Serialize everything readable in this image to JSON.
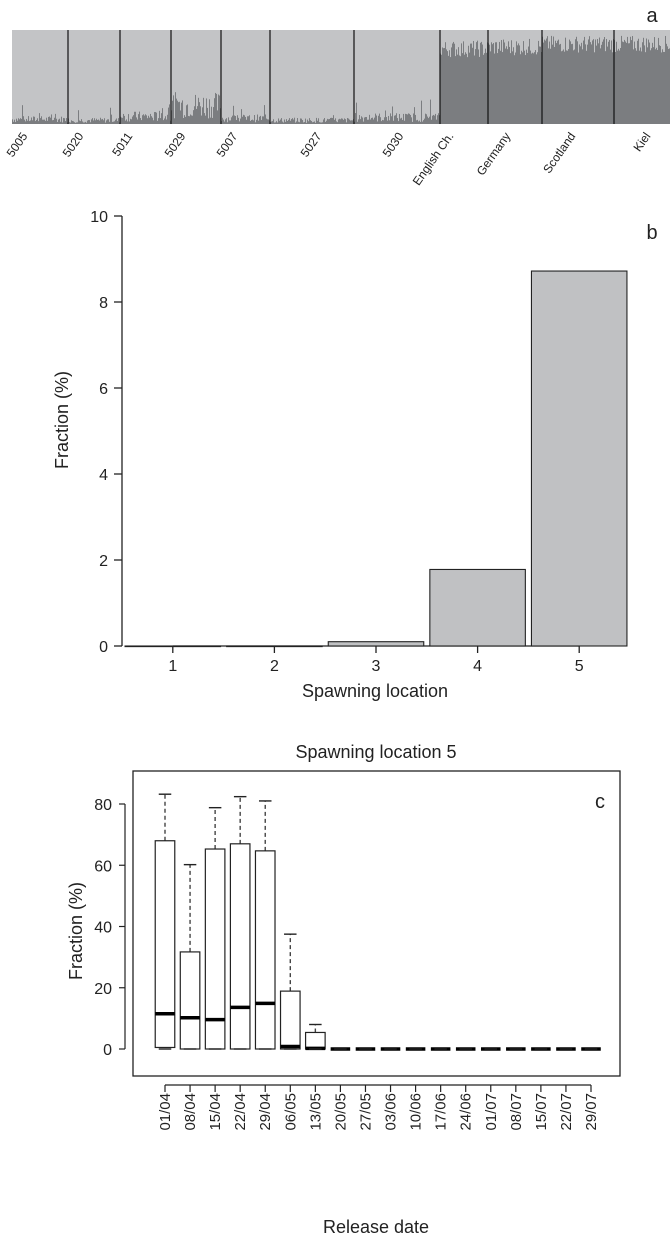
{
  "colors": {
    "bar_fill": "#c0c1c3",
    "structure_light": "#c3c4c6",
    "structure_dark": "#7b7d80",
    "axis": "#222222"
  },
  "chart_data": [
    {
      "type": "bar",
      "panel_label": "a",
      "description_note": "STRUCTURE-style admixture plot; light grey cluster proportion per individual",
      "groups": [
        "5005",
        "5020",
        "5011",
        "5029",
        "5007",
        "5027",
        "5030",
        "English Ch.",
        "Germany",
        "Scotland",
        "Kiel"
      ],
      "group_dark_cluster_approx": [
        0.05,
        0.04,
        0.08,
        0.2,
        0.06,
        0.04,
        0.07,
        0.8,
        0.82,
        0.85,
        0.85
      ],
      "ylim": [
        0,
        1
      ]
    },
    {
      "type": "bar",
      "panel_label": "b",
      "categories": [
        "1",
        "2",
        "3",
        "4",
        "5"
      ],
      "values": [
        0.0,
        0.0,
        0.1,
        1.78,
        8.72
      ],
      "xlabel": "Spawning location",
      "ylabel": "Fraction (%)",
      "ylim": [
        0,
        10
      ],
      "yticks": [
        0,
        2,
        4,
        6,
        8,
        10
      ]
    },
    {
      "type": "box",
      "panel_label": "c",
      "title": "Spawning location 5",
      "xlabel": "Release date",
      "ylabel": "Fraction (%)",
      "categories": [
        "01/04",
        "08/04",
        "15/04",
        "22/04",
        "29/04",
        "06/05",
        "13/05",
        "20/05",
        "27/05",
        "03/06",
        "10/06",
        "17/06",
        "24/06",
        "01/07",
        "08/07",
        "15/07",
        "22/07",
        "29/07"
      ],
      "series": [
        {
          "min": [
            0,
            0,
            0,
            0,
            0,
            0,
            0,
            0,
            0,
            0,
            0,
            0,
            0,
            0,
            0,
            0,
            0,
            0
          ],
          "q1": [
            0.5,
            0,
            0,
            0,
            0,
            0,
            0,
            0,
            0,
            0,
            0,
            0,
            0,
            0,
            0,
            0,
            0,
            0
          ],
          "median": [
            11.5,
            10.2,
            9.6,
            13.6,
            14.9,
            0.8,
            0.2,
            0,
            0,
            0,
            0,
            0,
            0,
            0,
            0,
            0,
            0,
            0
          ],
          "q3": [
            68.0,
            31.7,
            65.3,
            67.0,
            64.7,
            18.9,
            5.4,
            0,
            0,
            0,
            0,
            0,
            0,
            0,
            0,
            0,
            0,
            0
          ],
          "max": [
            83.2,
            60.2,
            78.8,
            82.4,
            81.0,
            37.5,
            8.0,
            0,
            0,
            0,
            0,
            0,
            0,
            0,
            0,
            0,
            0,
            0
          ]
        }
      ],
      "ylim": [
        0,
        85
      ],
      "yticks": [
        0,
        20,
        40,
        60,
        80
      ]
    }
  ]
}
